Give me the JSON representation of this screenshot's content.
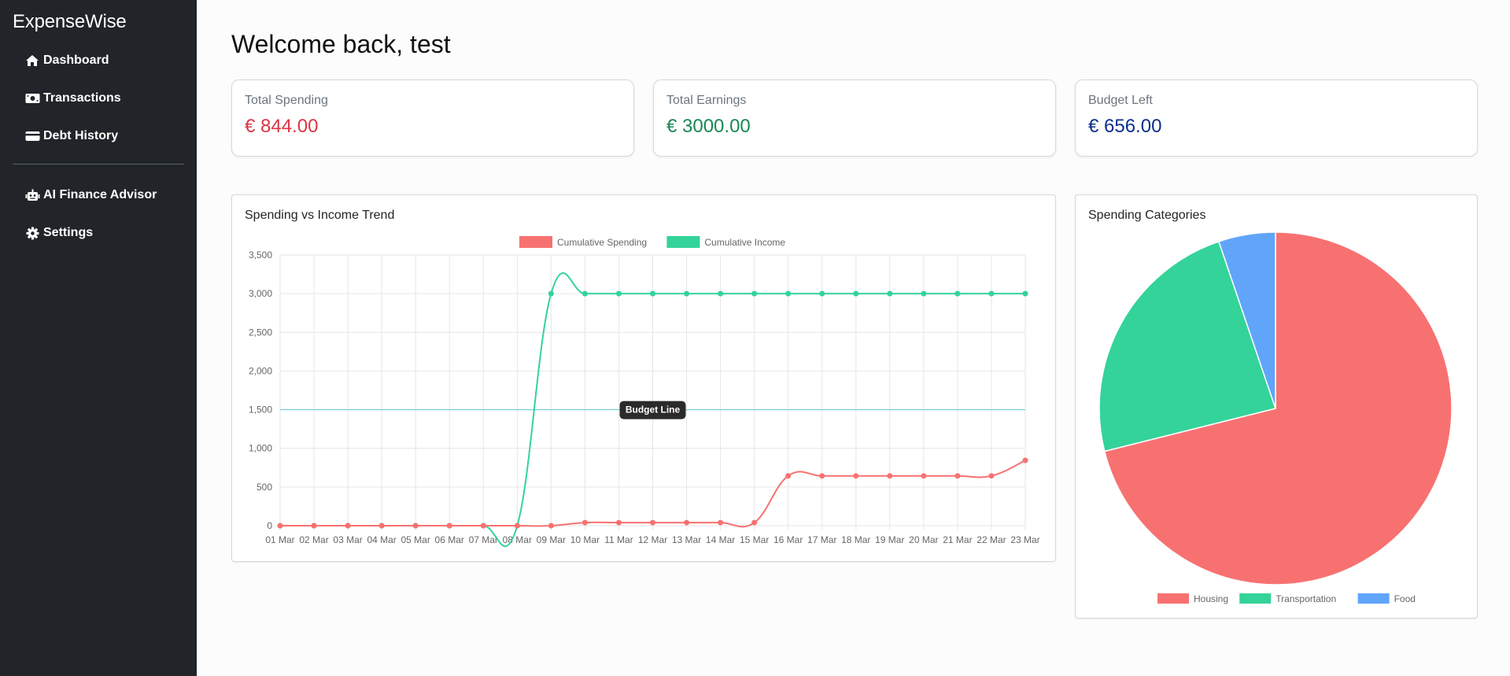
{
  "app": {
    "name": "ExpenseWise"
  },
  "sidebar": {
    "items": [
      {
        "label": "Dashboard",
        "icon": "home-icon"
      },
      {
        "label": "Transactions",
        "icon": "money-bill-icon"
      },
      {
        "label": "Debt History",
        "icon": "credit-card-icon"
      }
    ],
    "secondary_items": [
      {
        "label": "AI Finance Advisor",
        "icon": "robot-icon"
      },
      {
        "label": "Settings",
        "icon": "gear-icon"
      }
    ]
  },
  "header": {
    "welcome": "Welcome back, test"
  },
  "stats": [
    {
      "label": "Total Spending",
      "value": "€ 844.00",
      "color": "#dc3545"
    },
    {
      "label": "Total Earnings",
      "value": "€ 3000.00",
      "color": "#198754"
    },
    {
      "label": "Budget Left",
      "value": "€ 656.00",
      "color": "#0d2f8c"
    }
  ],
  "trend_panel": {
    "title": "Spending vs Income Trend"
  },
  "categories_panel": {
    "title": "Spending Categories"
  },
  "chart_data": [
    {
      "type": "line",
      "categories": [
        "01 Mar",
        "02 Mar",
        "03 Mar",
        "04 Mar",
        "05 Mar",
        "06 Mar",
        "07 Mar",
        "08 Mar",
        "09 Mar",
        "10 Mar",
        "11 Mar",
        "12 Mar",
        "13 Mar",
        "14 Mar",
        "15 Mar",
        "16 Mar",
        "17 Mar",
        "18 Mar",
        "19 Mar",
        "20 Mar",
        "21 Mar",
        "22 Mar",
        "23 Mar"
      ],
      "series": [
        {
          "name": "Cumulative Spending",
          "color": "#f87171",
          "values": [
            0,
            0,
            0,
            0,
            0,
            0,
            0,
            0,
            0,
            40,
            40,
            40,
            40,
            40,
            40,
            644,
            644,
            644,
            644,
            644,
            644,
            644,
            844
          ]
        },
        {
          "name": "Cumulative Income",
          "color": "#34d399",
          "values": [
            0,
            0,
            0,
            0,
            0,
            0,
            0,
            0,
            3000,
            3000,
            3000,
            3000,
            3000,
            3000,
            3000,
            3000,
            3000,
            3000,
            3000,
            3000,
            3000,
            3000,
            3000
          ]
        }
      ],
      "annotation": {
        "label": "Budget Line",
        "value": 1500,
        "color": "#67c7d8"
      },
      "yticks": [
        "0",
        "500",
        "1,000",
        "1,500",
        "2,000",
        "2,500",
        "3,000",
        "3,500"
      ],
      "ylim": [
        0,
        3500
      ],
      "legend": "top",
      "grid": true
    },
    {
      "type": "pie",
      "labels": [
        "Housing",
        "Transportation",
        "Food"
      ],
      "values": [
        600,
        200,
        44
      ],
      "colors": [
        "#f87171",
        "#34d399",
        "#60a5fa"
      ],
      "legend": "bottom"
    }
  ]
}
